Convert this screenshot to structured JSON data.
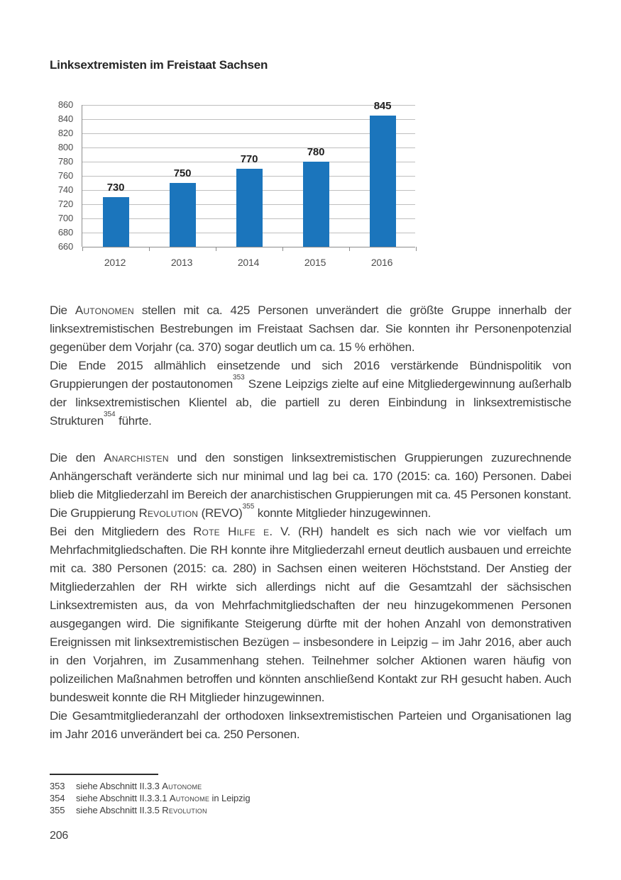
{
  "page": {
    "title": "Linksextremisten im Freistaat Sachsen",
    "page_number": "206"
  },
  "chart_data": {
    "type": "bar",
    "title": "Linksextremisten im Freistaat Sachsen",
    "categories": [
      "2012",
      "2013",
      "2014",
      "2015",
      "2016"
    ],
    "values": [
      730,
      750,
      770,
      780,
      845
    ],
    "value_labels": [
      730,
      750,
      770,
      780,
      845
    ],
    "xlabel": "",
    "ylabel": "",
    "ylim": [
      660,
      860
    ],
    "ytick_step": 20,
    "yticks": [
      860,
      840,
      820,
      800,
      780,
      760,
      740,
      720,
      700,
      680,
      660
    ],
    "grid": "horizontal",
    "legend": "none",
    "bar_color": "#1B75BC",
    "gridline_color": "#bfbfbf",
    "axis_color": "#8d8d8d"
  },
  "body": {
    "paragraphs": [
      {
        "gap_before": false,
        "segments": [
          {
            "t": "Die "
          },
          {
            "sc": "Autonomen"
          },
          {
            "t": " stellen mit ca. 425 Personen unverändert die größte Gruppe innerhalb der linksextremistischen Bestrebungen im Freistaat Sachsen dar. Sie konnten ihr Personenpotenzial gegenüber dem Vorjahr (ca. 370) sogar deutlich um ca. 15 % erhöhen."
          }
        ]
      },
      {
        "gap_before": false,
        "segments": [
          {
            "t": "Die Ende 2015 allmählich einsetzende und sich 2016 verstärkende Bündnispolitik von Gruppierungen der postautonomen"
          },
          {
            "sup": "353"
          },
          {
            "t": " Szene Leipzigs zielte auf eine Mitgliedergewinnung außerhalb der linksextremistischen Klientel ab, die partiell zu deren Einbindung in linksextremistische Strukturen"
          },
          {
            "sup": "354"
          },
          {
            "t": " führte."
          }
        ]
      },
      {
        "gap_before": true,
        "segments": [
          {
            "t": "Die den "
          },
          {
            "sc": "Anarchisten"
          },
          {
            "t": " und den sonstigen linksextremistischen Gruppierungen zuzurechnende Anhängerschaft veränderte sich nur minimal und lag bei ca. 170 (2015: ca. 160) Personen. Dabei blieb die Mitgliederzahl im Bereich der anarchistischen Gruppierungen mit ca. 45 Personen konstant. Die Gruppierung "
          },
          {
            "sc": "Revolution"
          },
          {
            "t": " (REVO)"
          },
          {
            "sup": "355"
          },
          {
            "t": " konnte Mitglieder hinzugewinnen."
          }
        ]
      },
      {
        "gap_before": false,
        "segments": [
          {
            "t": "Bei den Mitgliedern des "
          },
          {
            "sc": "Rote Hilfe e."
          },
          {
            "t": " V. (RH) handelt es sich nach wie vor vielfach um Mehrfachmitgliedschaften. Die RH konnte ihre Mitgliederzahl erneut deutlich ausbauen und erreichte mit ca. 380 Personen (2015: ca. 280) in Sachsen einen weiteren Höchststand. Der Anstieg der Mitgliederzahlen der RH wirkte sich allerdings nicht auf die Gesamtzahl der sächsischen Linksextremisten aus, da von Mehrfachmitgliedschaften der neu hinzugekommenen Personen ausgegangen wird. Die signifikante Steigerung dürfte mit der hohen Anzahl von demonstrativen Ereignissen mit linksextremistischen Bezügen – insbesondere in Leipzig – im Jahr 2016, aber auch in den Vorjahren, im Zusammenhang stehen. Teilnehmer solcher Aktionen waren häufig von polizeilichen Maßnahmen betroffen und könnten anschließend Kontakt zur RH gesucht haben. Auch bundesweit konnte die RH Mitglieder hinzugewinnen."
          }
        ]
      },
      {
        "gap_before": false,
        "segments": [
          {
            "t": "Die Gesamtmitgliederanzahl der orthodoxen linksextremistischen Parteien und Organisationen lag im Jahr 2016 unverändert bei ca. 250 Personen."
          }
        ]
      }
    ]
  },
  "footnotes": {
    "items": [
      {
        "num": "353",
        "segments": [
          {
            "t": "siehe Abschnitt II.3.3 "
          },
          {
            "sc": "Autonome"
          }
        ]
      },
      {
        "num": "354",
        "segments": [
          {
            "t": "siehe Abschnitt II.3.3.1 "
          },
          {
            "sc": "Autonome"
          },
          {
            "t": " in Leipzig"
          }
        ]
      },
      {
        "num": "355",
        "segments": [
          {
            "t": "siehe Abschnitt II.3.5 "
          },
          {
            "sc": "Revolution"
          }
        ]
      }
    ]
  }
}
